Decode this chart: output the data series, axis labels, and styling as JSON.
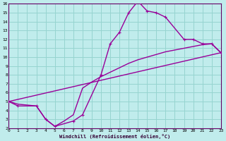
{
  "bg_color": "#c0ecec",
  "grid_color": "#96d4d0",
  "line_color": "#990099",
  "xlim": [
    0,
    23
  ],
  "ylim": [
    2,
    16
  ],
  "xticks": [
    0,
    1,
    2,
    3,
    4,
    5,
    6,
    7,
    8,
    9,
    10,
    11,
    12,
    13,
    14,
    15,
    16,
    17,
    18,
    19,
    20,
    21,
    22,
    23
  ],
  "yticks": [
    2,
    3,
    4,
    5,
    6,
    7,
    8,
    9,
    10,
    11,
    12,
    13,
    14,
    15,
    16
  ],
  "xlabel": "Windchill (Refroidissement éolien,°C)",
  "line1_x": [
    0,
    23
  ],
  "line1_y": [
    5,
    10.5
  ],
  "line2_x": [
    0,
    1,
    3,
    4,
    5,
    7,
    8,
    10,
    11,
    12,
    13,
    14,
    15,
    16,
    17,
    19,
    20,
    21,
    22,
    23
  ],
  "line2_y": [
    5,
    4.5,
    4.5,
    3.0,
    2.2,
    2.8,
    3.5,
    8.0,
    11.5,
    12.8,
    15.0,
    16.3,
    15.2,
    15.0,
    14.5,
    12.0,
    12.0,
    11.5,
    11.5,
    10.5
  ],
  "line3_x": [
    0,
    1,
    3,
    4,
    5,
    6,
    7,
    8,
    9,
    10,
    11,
    12,
    13,
    14,
    15,
    16,
    17,
    18,
    19,
    20,
    21,
    22,
    23
  ],
  "line3_y": [
    5,
    4.7,
    4.5,
    3.0,
    2.2,
    2.8,
    3.5,
    6.5,
    7.2,
    7.8,
    8.3,
    8.8,
    9.3,
    9.7,
    10.0,
    10.3,
    10.6,
    10.8,
    11.0,
    11.2,
    11.4,
    11.5,
    10.5
  ]
}
